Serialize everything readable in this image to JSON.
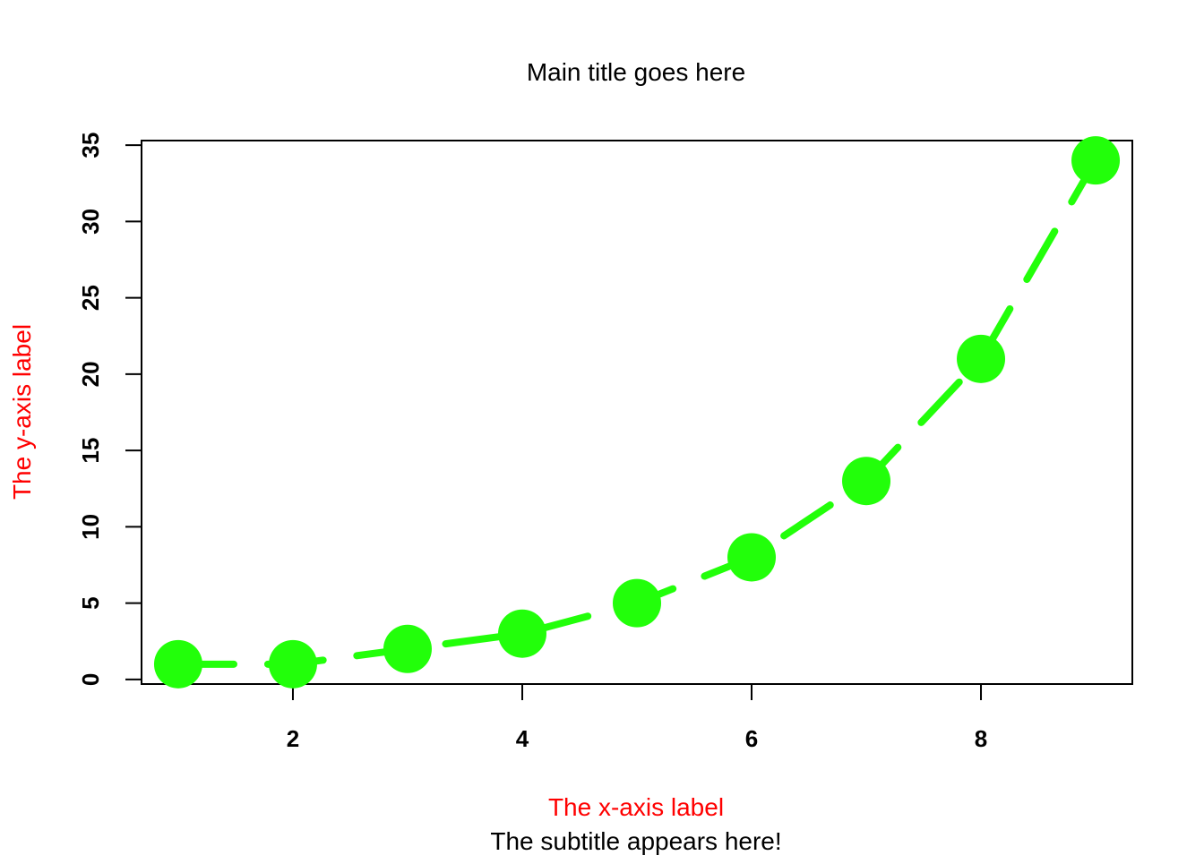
{
  "chart_data": {
    "type": "line",
    "title": "Main title goes here",
    "subtitle": "The subtitle appears here!",
    "xlabel": "The x-axis label",
    "ylabel": "The y-axis label",
    "x": [
      1,
      2,
      3,
      4,
      5,
      6,
      7,
      8,
      9
    ],
    "values": [
      1,
      1,
      2,
      3,
      5,
      8,
      13,
      21,
      34
    ],
    "xticks": [
      2,
      4,
      6,
      8
    ],
    "yticks": [
      0,
      5,
      10,
      15,
      20,
      25,
      30,
      35
    ],
    "xlim": [
      0.68,
      9.32
    ],
    "ylim": [
      -0.3,
      35.3
    ],
    "line_style": "dashed",
    "marker": "filled-circle",
    "grid": false,
    "colors": {
      "series": "#22FF0A",
      "axis_labels": "#FF0000",
      "text": "#000000"
    }
  }
}
